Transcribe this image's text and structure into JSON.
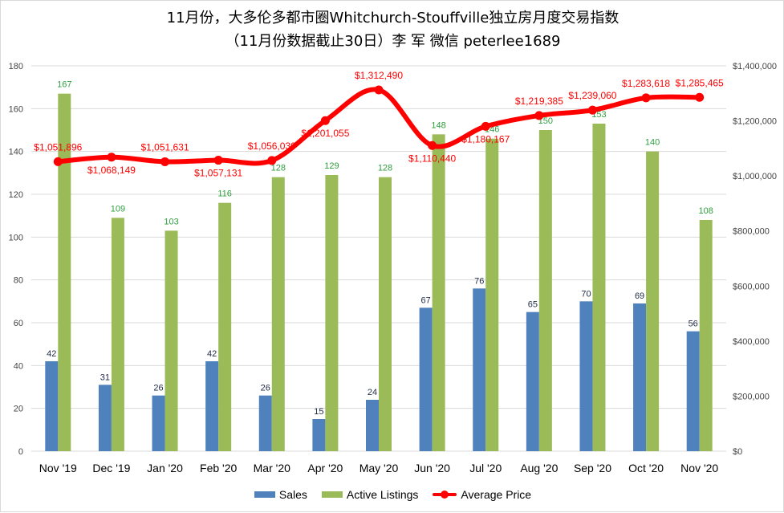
{
  "title": {
    "line1": "11月份，大多伦多都市圈Whitchurch-Stouffville独立房月度交易指数",
    "line2": "（11月份数据截止30日）李 军  微信  peterlee1689"
  },
  "colors": {
    "sales": "#4f81bd",
    "listings": "#9bbb59",
    "price": "#ff0000",
    "gridline": "#d9d9d9"
  },
  "chart_data": {
    "type": "bar",
    "categories": [
      "Nov '19",
      "Dec '19",
      "Jan '20",
      "Feb '20",
      "Mar '20",
      "Apr '20",
      "May '20",
      "Jun '20",
      "Jul '20",
      "Aug '20",
      "Sep '20",
      "Oct '20",
      "Nov '20"
    ],
    "series": [
      {
        "name": "Sales",
        "type": "bar",
        "axis": "left",
        "values": [
          42,
          31,
          26,
          42,
          26,
          15,
          24,
          67,
          76,
          65,
          70,
          69,
          56
        ]
      },
      {
        "name": "Active Listings",
        "type": "bar",
        "axis": "left",
        "values": [
          167,
          109,
          103,
          116,
          128,
          129,
          128,
          148,
          146,
          150,
          153,
          140,
          108
        ]
      },
      {
        "name": "Average Price",
        "type": "line",
        "axis": "right",
        "values": [
          1051896,
          1068149,
          1051631,
          1057131,
          1056030,
          1201055,
          1312490,
          1110440,
          1180167,
          1219385,
          1239060,
          1283618,
          1285465
        ],
        "labels": [
          "$1,051,896",
          "$1,068,149",
          "$1,051,631",
          "$1,057,131",
          "$1,056,030",
          "$1,201,055",
          "$1,312,490",
          "$1,110,440",
          "$1,180,167",
          "$1,219,385",
          "$1,239,060",
          "$1,283,618",
          "$1,285,465"
        ]
      }
    ],
    "y_left": {
      "ylim": [
        0,
        180
      ],
      "ticks": [
        "0",
        "20",
        "40",
        "60",
        "80",
        "100",
        "120",
        "140",
        "160",
        "180"
      ]
    },
    "y_right": {
      "ylim": [
        0,
        1400000
      ],
      "ticks": [
        "$0",
        "$200,000",
        "$400,000",
        "$600,000",
        "$800,000",
        "$1,000,000",
        "$1,200,000",
        "$1,400,000"
      ]
    },
    "grid": true,
    "legend_position": "bottom"
  }
}
